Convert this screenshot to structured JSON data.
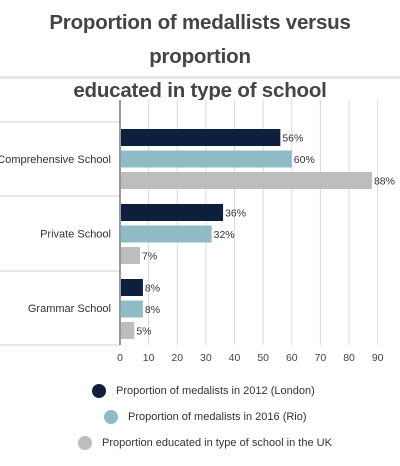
{
  "title_line1": "Proportion of medallists versus proportion",
  "title_line2": "educated in type of school",
  "chart_data": {
    "type": "bar",
    "orientation": "horizontal",
    "title": "Proportion of medallists versus proportion educated in type of school",
    "categories": [
      "Comprehensive School",
      "Private School",
      "Grammar School"
    ],
    "series": [
      {
        "name": "Proportion of medalists in 2012 (London)",
        "color": "#0d1f3c",
        "values": [
          56,
          36,
          8
        ]
      },
      {
        "name": "Proportion of medalists in 2016 (Rio)",
        "color": "#8fbcc4",
        "values": [
          60,
          32,
          8
        ]
      },
      {
        "name": "Proportion educated in type of school in the UK",
        "color": "#bdbdbd",
        "values": [
          88,
          7,
          5
        ]
      }
    ],
    "value_suffix": "%",
    "xlim": [
      0,
      95
    ],
    "xticks": [
      0,
      10,
      20,
      30,
      40,
      50,
      60,
      70,
      80,
      90
    ],
    "grid": true,
    "legend_position": "bottom"
  }
}
